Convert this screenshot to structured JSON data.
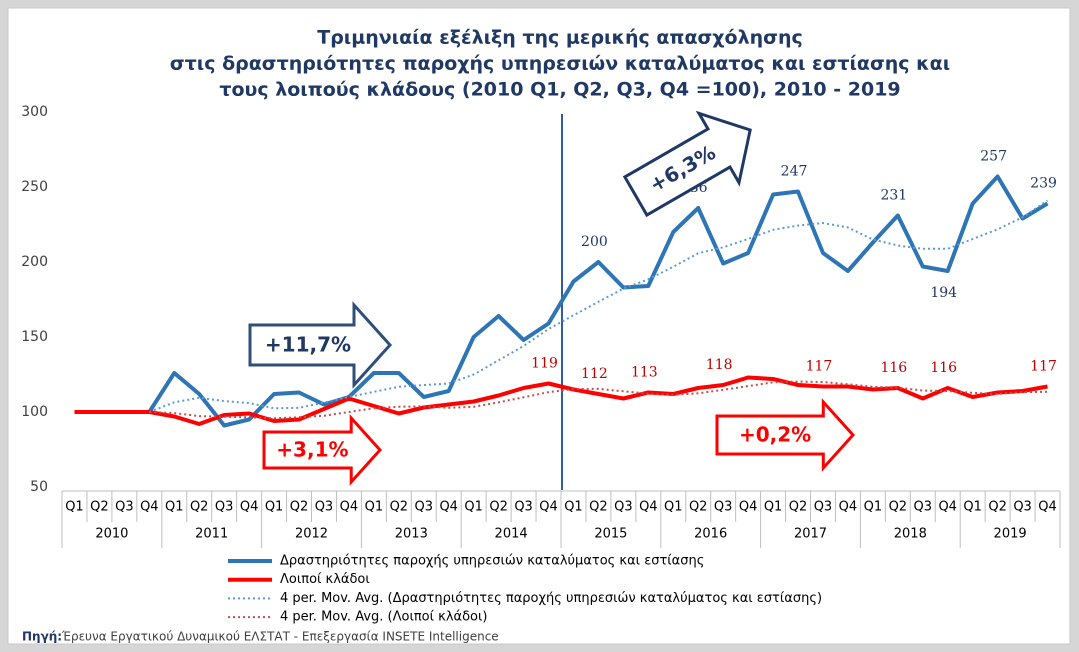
{
  "chart_data": {
    "type": "line",
    "title": [
      "Τριμηνιαία εξέλιξη της μερικής απασχόλησης",
      "στις δραστηριότητες παροχής υπηρεσιών καταλύματος και εστίασης και",
      "τους λοιπούς κλάδους (2010 Q1, Q2, Q3, Q4 =100), 2010 - 2019"
    ],
    "categories": [
      "Q1",
      "Q2",
      "Q3",
      "Q4",
      "Q1",
      "Q2",
      "Q3",
      "Q4",
      "Q1",
      "Q2",
      "Q3",
      "Q4",
      "Q1",
      "Q2",
      "Q3",
      "Q4",
      "Q1",
      "Q2",
      "Q3",
      "Q4",
      "Q1",
      "Q2",
      "Q3",
      "Q4",
      "Q1",
      "Q2",
      "Q3",
      "Q4",
      "Q1",
      "Q2",
      "Q3",
      "Q4",
      "Q1",
      "Q2",
      "Q3",
      "Q4",
      "Q1",
      "Q2",
      "Q3",
      "Q4"
    ],
    "year_groups": [
      "2010",
      "2011",
      "2012",
      "2013",
      "2014",
      "2015",
      "2016",
      "2017",
      "2018",
      "2019"
    ],
    "ylim": [
      50,
      300
    ],
    "yticks": [
      50,
      100,
      150,
      200,
      250,
      300
    ],
    "grid": false,
    "series": [
      {
        "name": "Δραστηριότητες παροχής υπηρεσιών καταλύματος και εστίασης",
        "color": "#2e75b6",
        "style": "solid",
        "label_color": "#1f3864",
        "values": [
          100,
          100,
          100,
          100,
          126,
          112,
          91,
          95,
          112,
          113,
          105,
          110,
          126,
          126,
          110,
          114,
          150,
          164,
          148,
          159,
          187,
          200,
          183,
          184,
          220,
          236,
          199,
          206,
          245,
          247,
          206,
          194,
          213,
          231,
          197,
          194,
          239,
          257,
          229,
          239
        ],
        "value_labels": [
          null,
          null,
          null,
          null,
          null,
          null,
          null,
          null,
          null,
          null,
          null,
          null,
          null,
          null,
          null,
          null,
          null,
          null,
          null,
          null,
          null,
          "200",
          null,
          null,
          null,
          "236",
          null,
          null,
          null,
          "247",
          null,
          null,
          null,
          "231",
          null,
          "194",
          null,
          "257",
          null,
          "239"
        ]
      },
      {
        "name": "Λοιποί κλάδοι",
        "color": "#ff0000",
        "style": "solid",
        "label_color": "#c00000",
        "values": [
          100,
          100,
          100,
          100,
          97,
          92,
          98,
          99,
          94,
          95,
          102,
          109,
          104,
          99,
          103,
          105,
          107,
          111,
          116,
          119,
          115,
          112,
          109,
          113,
          112,
          116,
          118,
          123,
          122,
          118,
          117,
          117,
          115,
          116,
          109,
          116,
          110,
          113,
          114,
          117
        ],
        "value_labels": [
          null,
          null,
          null,
          null,
          null,
          null,
          null,
          null,
          null,
          null,
          null,
          null,
          null,
          null,
          null,
          null,
          null,
          null,
          null,
          "119",
          null,
          "112",
          null,
          "113",
          null,
          null,
          "118",
          null,
          null,
          null,
          "117",
          null,
          null,
          "116",
          null,
          "116",
          null,
          null,
          null,
          "117"
        ]
      },
      {
        "name": "4 per. Mov. Avg. (Δραστηριότητες παροχής υπηρεσιών καταλύματος και εστίασης)",
        "color": "#5b9bd5",
        "style": "dotted",
        "values": [
          null,
          null,
          null,
          100,
          106.5,
          109.5,
          107.3,
          106,
          102.5,
          102.8,
          106.3,
          110,
          113.5,
          116.8,
          118,
          119,
          125,
          134.5,
          144,
          155.3,
          164.5,
          173.5,
          182.3,
          188.5,
          196.8,
          205.8,
          209.8,
          215.3,
          221.5,
          224.3,
          226,
          223,
          215,
          211,
          208.8,
          208.8,
          215.3,
          221.8,
          229.8,
          241
        ]
      },
      {
        "name": "4 per. Mov. Avg. (Λοιποί κλάδοι)",
        "color": "#c0504d",
        "style": "dotted",
        "values": [
          null,
          null,
          null,
          100,
          99.3,
          97.3,
          96.8,
          96.5,
          95.8,
          96.5,
          97.5,
          100,
          102.5,
          103.5,
          103.8,
          102.8,
          103.5,
          106.5,
          109.8,
          113.3,
          115.3,
          115.5,
          113.8,
          112.3,
          111.5,
          112.5,
          114.8,
          117.3,
          119.8,
          120.3,
          120,
          118.5,
          116.8,
          116.3,
          114.3,
          114,
          112.8,
          112,
          113.3,
          113.5
        ]
      }
    ],
    "annotations": [
      {
        "text": "+6,3%",
        "color": "#1f3864"
      },
      {
        "text": "+11,7%",
        "color": "#1f3864"
      },
      {
        "text": "+3,1%",
        "color": "#ff0000"
      },
      {
        "text": "+0,2%",
        "color": "#ff0000"
      }
    ],
    "source_label": "Πηγή:",
    "source": "Έρευνα Εργατικού Δυναμικού ΕΛΣΤΑΤ - Επεξεργασία INSETE Intelligence"
  }
}
